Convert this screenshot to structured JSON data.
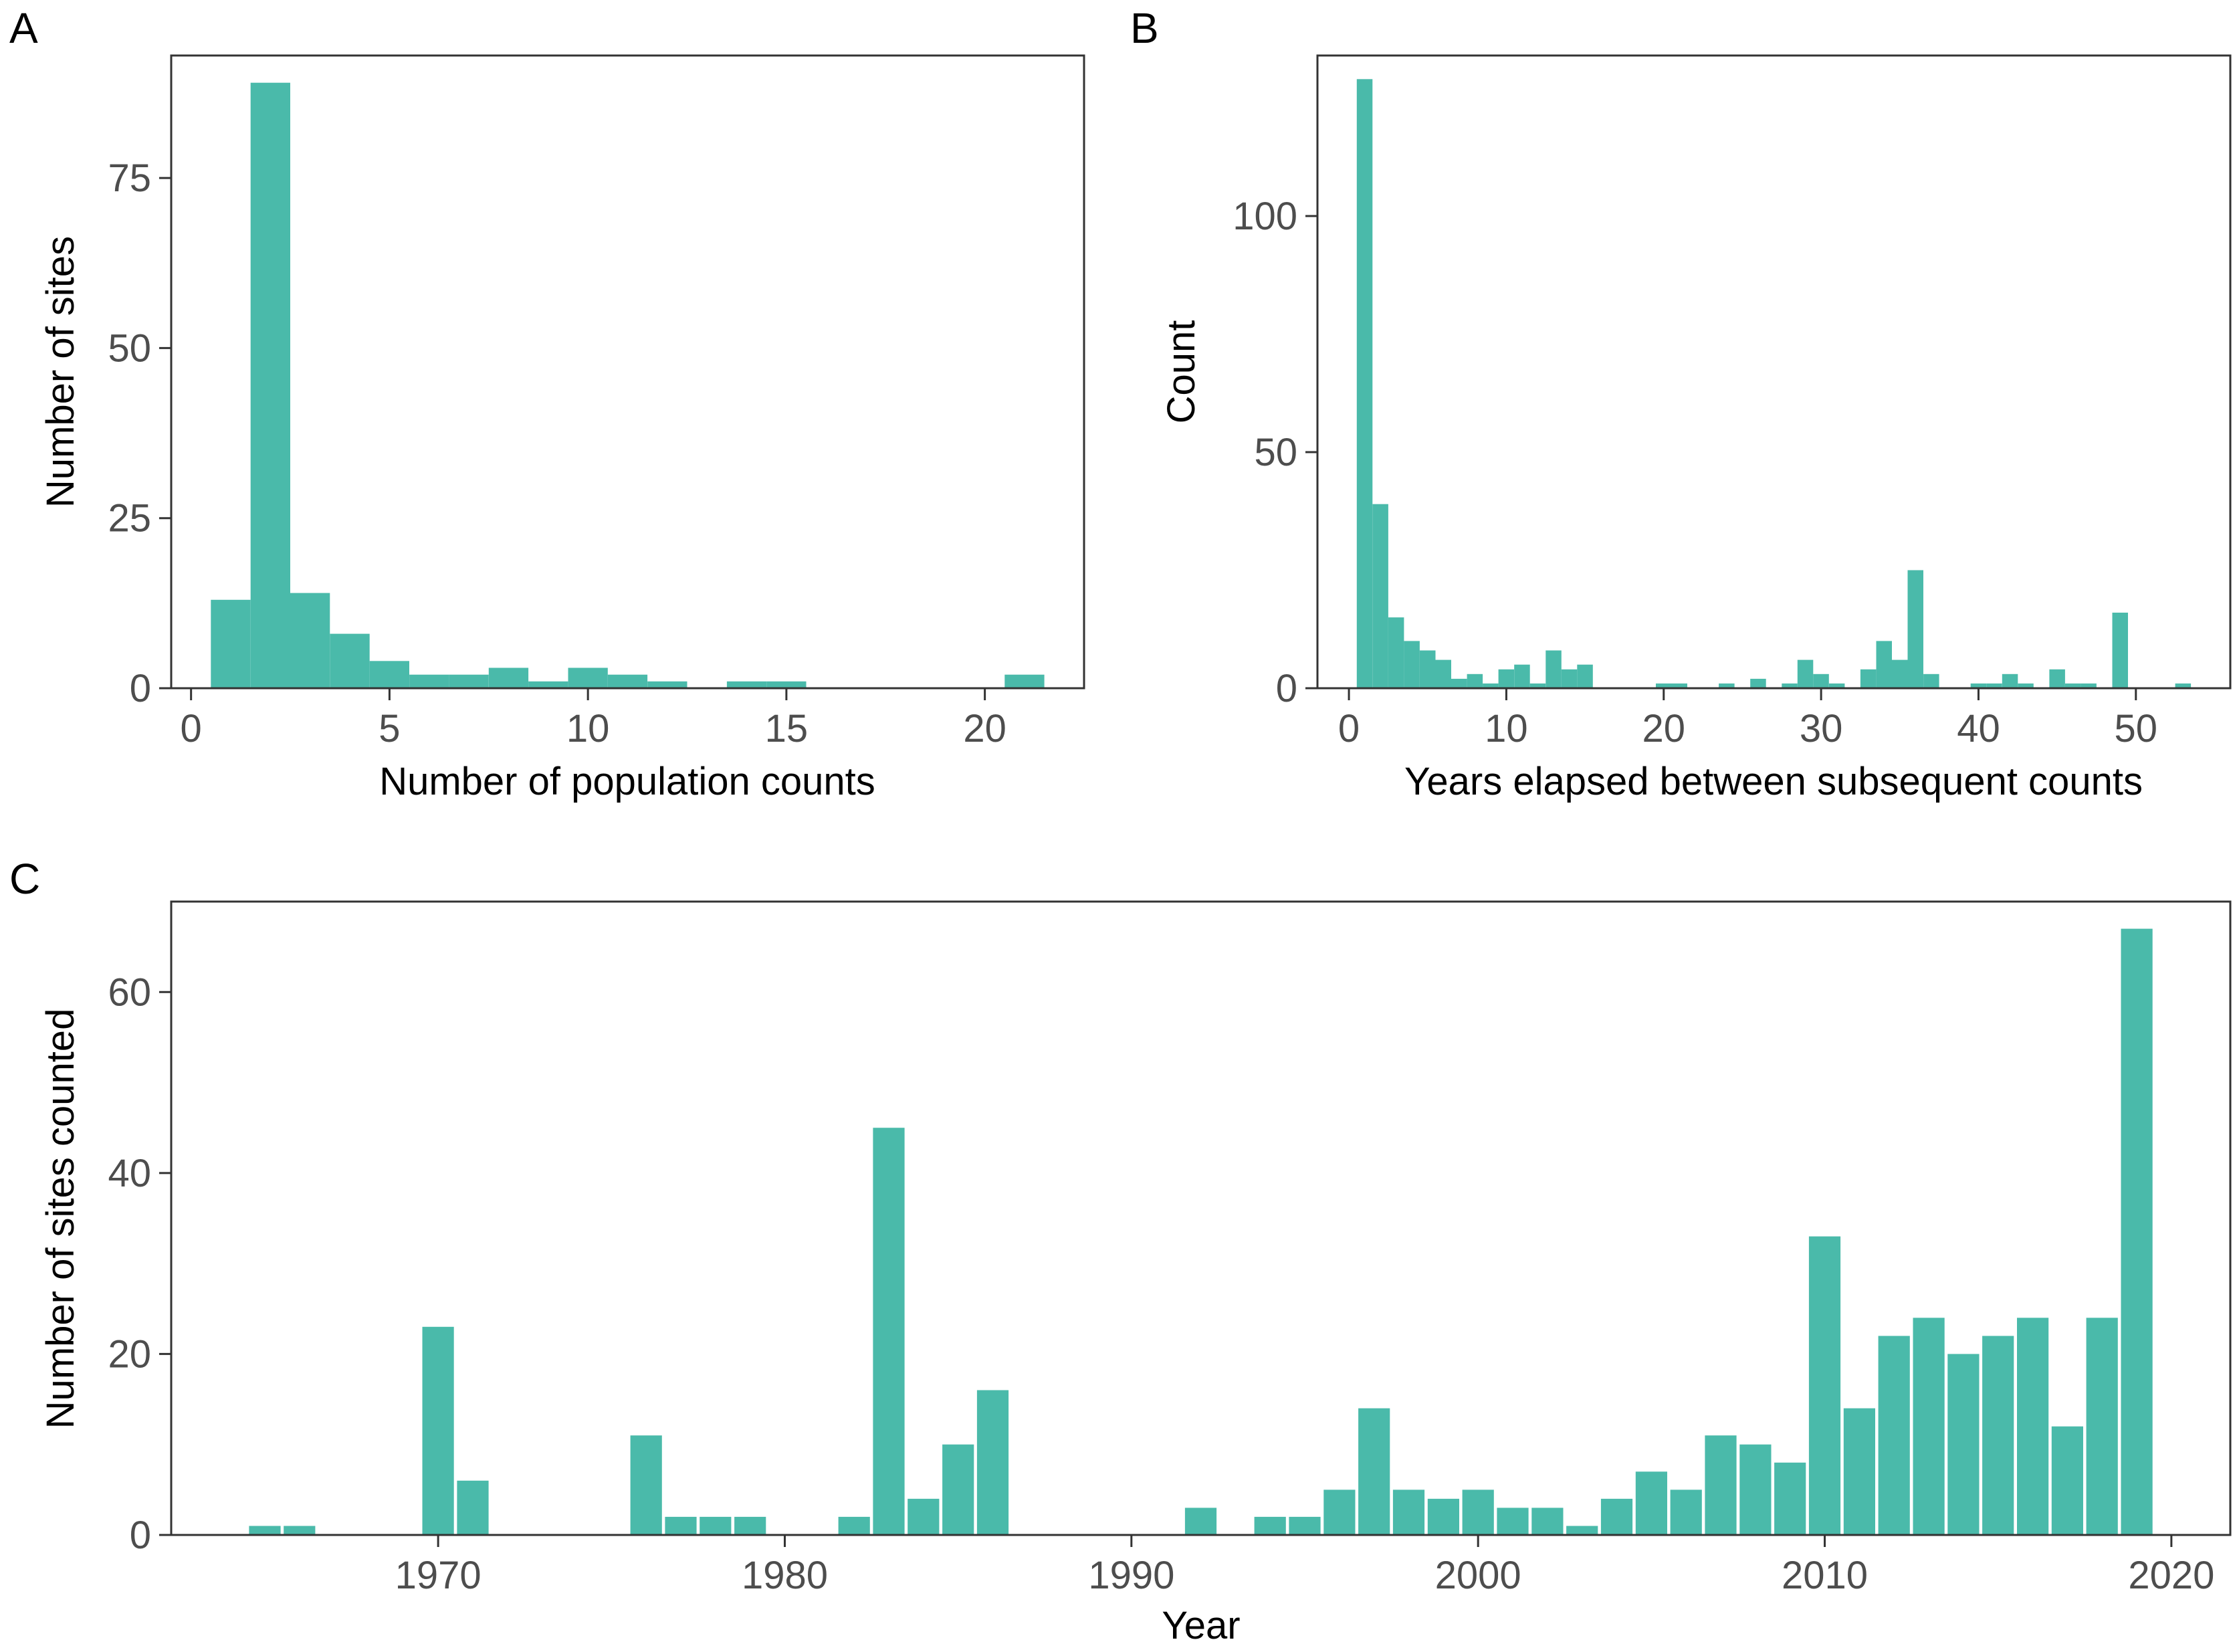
{
  "colors": {
    "bar": "#4ABAAA",
    "frame": "#333333",
    "tick": "#333333"
  },
  "chart_data": [
    {
      "panel": "A",
      "type": "bar",
      "xlabel": "Number of population counts",
      "ylabel": "Number of sites",
      "xlim": [
        -0.5,
        22.5
      ],
      "ylim": [
        0,
        93
      ],
      "xticks": [
        0,
        5,
        10,
        15,
        20
      ],
      "yticks": [
        0,
        25,
        50,
        75
      ],
      "x": [
        1,
        2,
        3,
        4,
        5,
        6,
        7,
        8,
        9,
        10,
        11,
        12,
        14,
        15,
        21
      ],
      "values": [
        13,
        89,
        14,
        8,
        4,
        2,
        2,
        3,
        1,
        3,
        2,
        1,
        1,
        1,
        2
      ]
    },
    {
      "panel": "B",
      "type": "bar",
      "xlabel": "Years elapsed between subsequent counts",
      "ylabel": "Count",
      "xlim": [
        -2,
        56
      ],
      "ylim": [
        0,
        134
      ],
      "xticks": [
        0,
        10,
        20,
        30,
        40,
        50
      ],
      "yticks": [
        0,
        50,
        100
      ],
      "x": [
        1,
        2,
        3,
        4,
        5,
        6,
        7,
        8,
        9,
        10,
        11,
        12,
        13,
        14,
        15,
        20,
        21,
        24,
        26,
        28,
        29,
        30,
        31,
        33,
        34,
        35,
        36,
        37,
        40,
        41,
        42,
        43,
        45,
        46,
        47,
        49,
        53
      ],
      "values": [
        129,
        39,
        15,
        10,
        8,
        6,
        2,
        3,
        1,
        4,
        5,
        1,
        8,
        4,
        5,
        1,
        1,
        1,
        2,
        1,
        6,
        3,
        1,
        4,
        10,
        6,
        25,
        3,
        1,
        1,
        3,
        1,
        4,
        1,
        1,
        16,
        1
      ]
    },
    {
      "panel": "C",
      "type": "bar",
      "xlabel": "Year",
      "ylabel": "Number of sites counted",
      "xlim": [
        1962.3,
        2021.7
      ],
      "ylim": [
        0,
        70
      ],
      "xticks": [
        1970,
        1980,
        1990,
        2000,
        2010,
        2020
      ],
      "yticks": [
        0,
        20,
        40,
        60
      ],
      "x": [
        1965,
        1966,
        1970,
        1971,
        1976,
        1977,
        1978,
        1979,
        1982,
        1983,
        1984,
        1985,
        1986,
        1992,
        1994,
        1995,
        1996,
        1997,
        1998,
        1999,
        2000,
        2001,
        2002,
        2003,
        2004,
        2005,
        2006,
        2007,
        2008,
        2009,
        2010,
        2011,
        2012,
        2013,
        2014,
        2015,
        2016,
        2017,
        2018,
        2019
      ],
      "values": [
        1,
        1,
        23,
        6,
        11,
        2,
        2,
        2,
        2,
        45,
        4,
        10,
        16,
        3,
        2,
        2,
        5,
        14,
        5,
        4,
        5,
        3,
        3,
        1,
        4,
        7,
        5,
        11,
        10,
        8,
        33,
        14,
        22,
        24,
        20,
        22,
        24,
        12,
        24,
        67
      ]
    }
  ]
}
